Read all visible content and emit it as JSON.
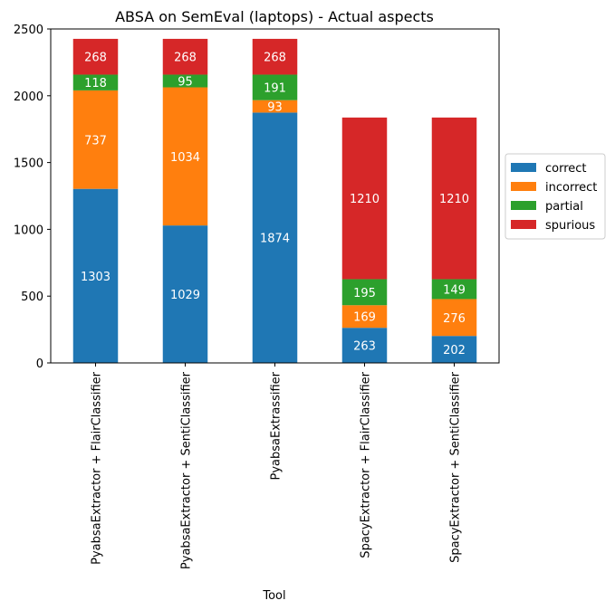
{
  "chart_data": {
    "type": "bar",
    "stacked": true,
    "title": "ABSA on SemEval (laptops) - Actual aspects",
    "xlabel": "Tool",
    "ylabel": "",
    "ylim": [
      0,
      2500
    ],
    "yticks": [
      0,
      500,
      1000,
      1500,
      2000,
      2500
    ],
    "legend_position": "right-center",
    "grid": false,
    "categories": [
      "PyabsaExtractor + FlairClassifier",
      "PyabsaExtractor + SentiClassifier",
      "PyabsaExtrassifier",
      "SpacyExtractor + FlairClassifier",
      "SpacyExtractor + SentiClassifier"
    ],
    "series": [
      {
        "name": "correct",
        "color": "#1f77b4",
        "values": [
          1303,
          1029,
          1874,
          263,
          202
        ]
      },
      {
        "name": "incorrect",
        "color": "#ff7f0e",
        "values": [
          737,
          1034,
          93,
          169,
          276
        ]
      },
      {
        "name": "partial",
        "color": "#2ca02c",
        "values": [
          118,
          95,
          191,
          195,
          149
        ]
      },
      {
        "name": "spurious",
        "color": "#d62728",
        "values": [
          268,
          268,
          268,
          1210,
          1210
        ]
      }
    ]
  }
}
